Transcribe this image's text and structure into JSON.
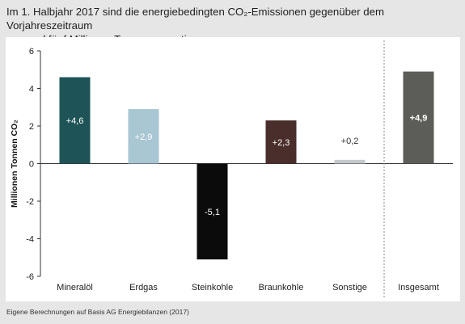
{
  "title_line1": "Im 1. Halbjahr 2017 sind die energiebedingten CO₂-Emissionen gegenüber dem Vorjahreszeitraum",
  "title_line2": "um rund fünf Millionen Tonnen angestiegen",
  "source": "Eigene Berechnungen auf Basis AG Energiebilanzen (2017)",
  "chart_data": {
    "type": "bar",
    "ylabel": "Millionen Tonnen CO₂",
    "ylim": [
      -6,
      6
    ],
    "yticks": [
      "6",
      "4",
      "2",
      "0",
      "-2",
      "-4",
      "-6"
    ],
    "ytick_values": [
      6,
      4,
      2,
      0,
      -2,
      -4,
      -6
    ],
    "categories": [
      "Mineralöl",
      "Erdgas",
      "Steinkohle",
      "Braunkohle",
      "Sonstige",
      "Insgesamt"
    ],
    "values": [
      4.6,
      2.9,
      -5.1,
      2.3,
      0.2,
      4.9
    ],
    "data_labels": [
      "+4,6",
      "+2,9",
      "-5,1",
      "+2,3",
      "+0,2",
      "+4,9"
    ],
    "colors": [
      "#1e5458",
      "#a9c6d3",
      "#0b0b0b",
      "#4a2e2b",
      "#c5c9cc",
      "#5c5d58"
    ],
    "label_colors": [
      "#ffffff",
      "#ffffff",
      "#ffffff",
      "#ffffff",
      "#333333",
      "#ffffff"
    ],
    "label_bold": [
      false,
      false,
      false,
      false,
      false,
      true
    ],
    "grid": false,
    "separator_before_last": true
  }
}
